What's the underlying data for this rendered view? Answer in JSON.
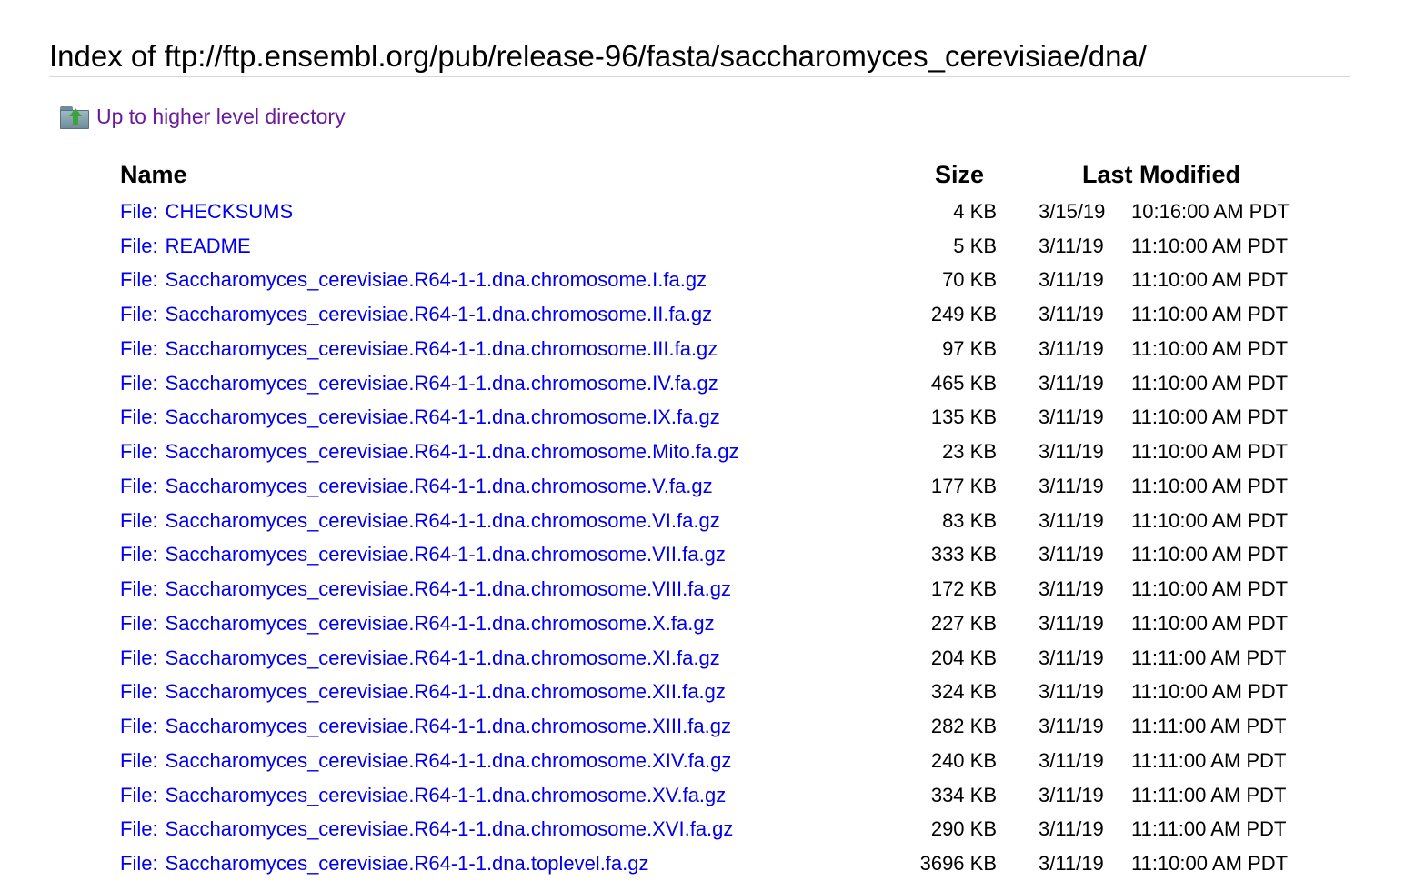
{
  "page": {
    "title": "Index of ftp://ftp.ensembl.org/pub/release-96/fasta/saccharomyces_cerevisiae/dna/",
    "up_link_label": "Up to higher level directory",
    "folder_icon": "folder-up-icon"
  },
  "table": {
    "headers": {
      "name": "Name",
      "size": "Size",
      "last_modified": "Last Modified"
    },
    "file_prefix": "File:",
    "rows": [
      {
        "name": "CHECKSUMS",
        "size": "4 KB",
        "date": "3/15/19",
        "time": "10:16:00 AM PDT"
      },
      {
        "name": "README",
        "size": "5 KB",
        "date": "3/11/19",
        "time": "11:10:00 AM PDT"
      },
      {
        "name": "Saccharomyces_cerevisiae.R64-1-1.dna.chromosome.I.fa.gz",
        "size": "70 KB",
        "date": "3/11/19",
        "time": "11:10:00 AM PDT"
      },
      {
        "name": "Saccharomyces_cerevisiae.R64-1-1.dna.chromosome.II.fa.gz",
        "size": "249 KB",
        "date": "3/11/19",
        "time": "11:10:00 AM PDT"
      },
      {
        "name": "Saccharomyces_cerevisiae.R64-1-1.dna.chromosome.III.fa.gz",
        "size": "97 KB",
        "date": "3/11/19",
        "time": "11:10:00 AM PDT"
      },
      {
        "name": "Saccharomyces_cerevisiae.R64-1-1.dna.chromosome.IV.fa.gz",
        "size": "465 KB",
        "date": "3/11/19",
        "time": "11:10:00 AM PDT"
      },
      {
        "name": "Saccharomyces_cerevisiae.R64-1-1.dna.chromosome.IX.fa.gz",
        "size": "135 KB",
        "date": "3/11/19",
        "time": "11:10:00 AM PDT"
      },
      {
        "name": "Saccharomyces_cerevisiae.R64-1-1.dna.chromosome.Mito.fa.gz",
        "size": "23 KB",
        "date": "3/11/19",
        "time": "11:10:00 AM PDT"
      },
      {
        "name": "Saccharomyces_cerevisiae.R64-1-1.dna.chromosome.V.fa.gz",
        "size": "177 KB",
        "date": "3/11/19",
        "time": "11:10:00 AM PDT"
      },
      {
        "name": "Saccharomyces_cerevisiae.R64-1-1.dna.chromosome.VI.fa.gz",
        "size": "83 KB",
        "date": "3/11/19",
        "time": "11:10:00 AM PDT"
      },
      {
        "name": "Saccharomyces_cerevisiae.R64-1-1.dna.chromosome.VII.fa.gz",
        "size": "333 KB",
        "date": "3/11/19",
        "time": "11:10:00 AM PDT"
      },
      {
        "name": "Saccharomyces_cerevisiae.R64-1-1.dna.chromosome.VIII.fa.gz",
        "size": "172 KB",
        "date": "3/11/19",
        "time": "11:10:00 AM PDT"
      },
      {
        "name": "Saccharomyces_cerevisiae.R64-1-1.dna.chromosome.X.fa.gz",
        "size": "227 KB",
        "date": "3/11/19",
        "time": "11:10:00 AM PDT"
      },
      {
        "name": "Saccharomyces_cerevisiae.R64-1-1.dna.chromosome.XI.fa.gz",
        "size": "204 KB",
        "date": "3/11/19",
        "time": "11:11:00 AM PDT"
      },
      {
        "name": "Saccharomyces_cerevisiae.R64-1-1.dna.chromosome.XII.fa.gz",
        "size": "324 KB",
        "date": "3/11/19",
        "time": "11:10:00 AM PDT"
      },
      {
        "name": "Saccharomyces_cerevisiae.R64-1-1.dna.chromosome.XIII.fa.gz",
        "size": "282 KB",
        "date": "3/11/19",
        "time": "11:11:00 AM PDT"
      },
      {
        "name": "Saccharomyces_cerevisiae.R64-1-1.dna.chromosome.XIV.fa.gz",
        "size": "240 KB",
        "date": "3/11/19",
        "time": "11:11:00 AM PDT"
      },
      {
        "name": "Saccharomyces_cerevisiae.R64-1-1.dna.chromosome.XV.fa.gz",
        "size": "334 KB",
        "date": "3/11/19",
        "time": "11:11:00 AM PDT"
      },
      {
        "name": "Saccharomyces_cerevisiae.R64-1-1.dna.chromosome.XVI.fa.gz",
        "size": "290 KB",
        "date": "3/11/19",
        "time": "11:11:00 AM PDT"
      },
      {
        "name": "Saccharomyces_cerevisiae.R64-1-1.dna.toplevel.fa.gz",
        "size": "3696 KB",
        "date": "3/11/19",
        "time": "11:10:00 AM PDT"
      }
    ]
  },
  "colors": {
    "link": "#0000ee",
    "visited_link": "#6a1b9a",
    "rule": "#d6d6d6"
  }
}
